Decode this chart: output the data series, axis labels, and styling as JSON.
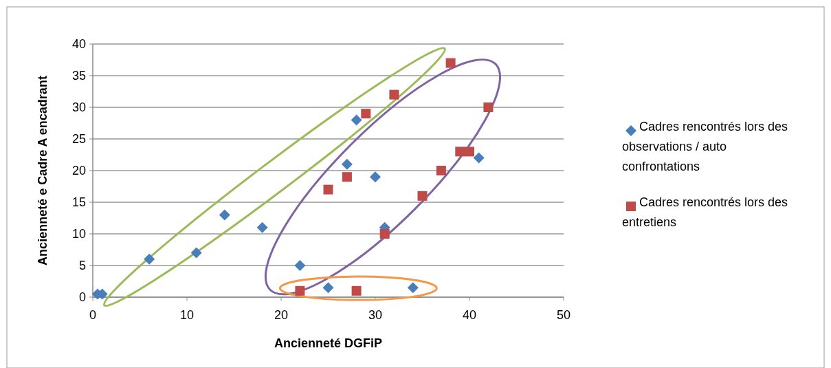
{
  "chart_data": {
    "type": "scatter",
    "xlabel": "Ancienneté DGFiP",
    "ylabel": "Ancienneté e Cadre A encadrant",
    "xlim": [
      0,
      50
    ],
    "xticks": [
      0,
      10,
      20,
      30,
      40,
      50
    ],
    "ylim": [
      0,
      40
    ],
    "yticks": [
      0,
      5,
      10,
      15,
      20,
      25,
      30,
      35,
      40
    ],
    "grid": "y",
    "legend": "right",
    "series": [
      {
        "name": "Cadres rencontrés lors des observations / auto confrontations",
        "color": "#4a7ebb",
        "marker": "diamond",
        "x": [
          0.5,
          1,
          6,
          11,
          14,
          18,
          22,
          25,
          27,
          28,
          30,
          31,
          34,
          41
        ],
        "values": [
          0.5,
          0.5,
          6,
          7,
          13,
          11,
          5,
          1.5,
          21,
          28,
          19,
          11,
          1.5,
          22
        ]
      },
      {
        "name": "Cadres rencontrés lors des entretiens",
        "color": "#be4b48",
        "marker": "square",
        "x": [
          22,
          25,
          27,
          28,
          29,
          31,
          32,
          35,
          37,
          38,
          39,
          40,
          42
        ],
        "values": [
          1,
          17,
          19,
          1,
          29,
          10,
          32,
          16,
          20,
          37,
          23,
          23,
          30
        ]
      }
    ]
  }
}
